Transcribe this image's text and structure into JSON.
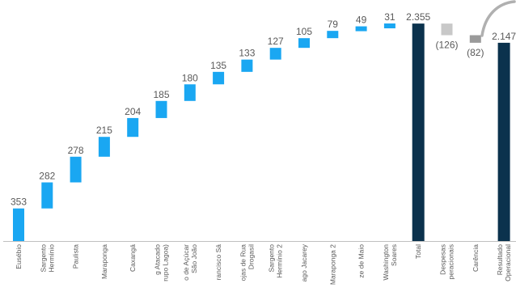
{
  "chart_data": {
    "type": "waterfall",
    "title": "",
    "xlabel": "",
    "ylabel": "",
    "ylim": [
      0,
      2400
    ],
    "grid": false,
    "legend": "none",
    "colors": {
      "increase": "#1aa7f2",
      "total": "#0b324d",
      "decrease": "#c8c8c8",
      "carencia": "#9a9a9a",
      "axis": "#c0c0c0",
      "arrow": "#b0b0b0"
    },
    "items": [
      {
        "category": [
          "Eusébio"
        ],
        "value": 353,
        "label": "353",
        "kind": "increase"
      },
      {
        "category": [
          "Sargento",
          "Hermínio"
        ],
        "value": 282,
        "label": "282",
        "kind": "increase"
      },
      {
        "category": [
          "Paulista"
        ],
        "value": 278,
        "label": "278",
        "kind": "increase"
      },
      {
        "category": [
          "Maraponga"
        ],
        "value": 215,
        "label": "215",
        "kind": "increase"
      },
      {
        "category": [
          "Caxangá"
        ],
        "value": 204,
        "label": "204",
        "kind": "increase"
      },
      {
        "category": [
          "g Atacado",
          "rupo Lagoa)"
        ],
        "value": 185,
        "label": "185",
        "kind": "increase"
      },
      {
        "category": [
          "o de Açúcar",
          "São João"
        ],
        "value": 180,
        "label": "180",
        "kind": "increase"
      },
      {
        "category": [
          "rancisco Sá"
        ],
        "value": 135,
        "label": "135",
        "kind": "increase"
      },
      {
        "category": [
          "ojas de Rua",
          "Drogasil"
        ],
        "value": 133,
        "label": "133",
        "kind": "increase"
      },
      {
        "category": [
          "Sargento",
          "Hermínio 2"
        ],
        "value": 127,
        "label": "127",
        "kind": "increase"
      },
      {
        "category": [
          "ago Jacarey"
        ],
        "value": 105,
        "label": "105",
        "kind": "increase"
      },
      {
        "category": [
          "Maraponga 2"
        ],
        "value": 79,
        "label": "79",
        "kind": "increase"
      },
      {
        "category": [
          "ze de Maio"
        ],
        "value": 49,
        "label": "49",
        "kind": "increase"
      },
      {
        "category": [
          "Washington",
          "Soares"
        ],
        "value": 31,
        "label": "31",
        "kind": "increase"
      },
      {
        "category": [
          "Total"
        ],
        "value": 2355,
        "label": "2.355",
        "kind": "total"
      },
      {
        "category": [
          "Despesas",
          "peracionais"
        ],
        "value": -126,
        "label": "(126)",
        "kind": "decrease"
      },
      {
        "category": [
          "Carência"
        ],
        "value": -82,
        "label": "(82)",
        "kind": "carencia"
      },
      {
        "category": [
          "Resultado",
          "Operacional"
        ],
        "value": 2147,
        "label": "2.147",
        "kind": "total"
      }
    ]
  }
}
